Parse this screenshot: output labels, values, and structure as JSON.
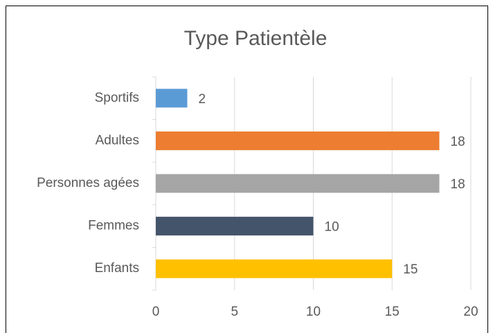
{
  "chart_data": {
    "type": "bar",
    "orientation": "horizontal",
    "title": "Type Patientèle",
    "categories": [
      "Sportifs",
      "Adultes",
      "Personnes agées",
      "Femmes",
      "Enfants"
    ],
    "values": [
      2,
      18,
      18,
      10,
      15
    ],
    "colors": [
      "#5b9bd5",
      "#ed7d31",
      "#a5a5a5",
      "#44546a",
      "#ffc000"
    ],
    "xlim": [
      0,
      20
    ],
    "xticks": [
      0,
      5,
      10,
      15,
      20
    ],
    "grid": true
  }
}
